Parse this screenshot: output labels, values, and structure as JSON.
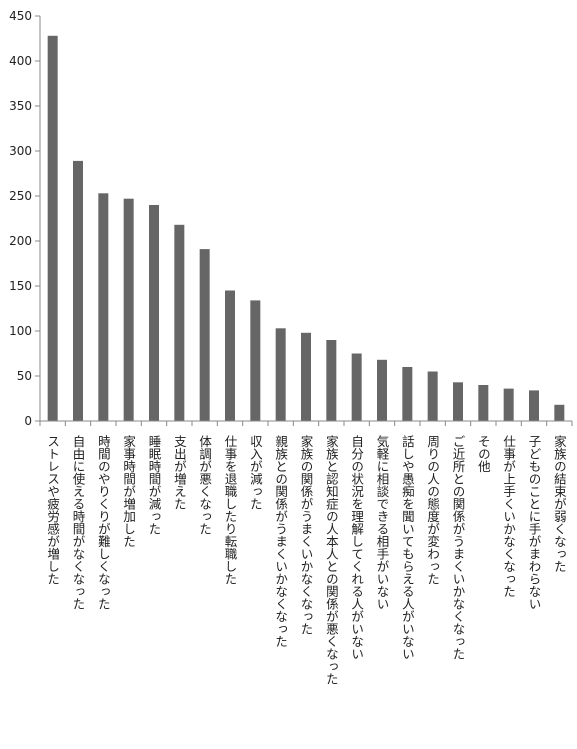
{
  "chart_data": {
    "type": "bar",
    "title": "",
    "xlabel": "",
    "ylabel": "",
    "ylim": [
      0,
      450
    ],
    "yticks": [
      0,
      50,
      100,
      150,
      200,
      250,
      300,
      350,
      400,
      450
    ],
    "grid": false,
    "legend": "none",
    "bar_color": "#666666",
    "axis_color": "#888888",
    "categories": [
      "ストレスや疲労感が増した",
      "自由に使える時間がなくなった",
      "時間のやりくりが難しくなった",
      "家事時間が増加した",
      "睡眠時間が減った",
      "支出が増えた",
      "体調が悪くなった",
      "仕事を退職したり転職した",
      "収入が減った",
      "親族との関係がうまくいかなくなった",
      "家族の関係がうまくいかなくなった",
      "家族と認知症の人本人との関係が悪くなった",
      "自分の状況を理解してくれる人がいない",
      "気軽に相談できる相手がいない",
      "話しや愚痴を聞いてもらえる人がいない",
      "周りの人の態度が変わった",
      "ご近所との関係がうまくいかなくなった",
      "その他",
      "仕事が上手くいかなくなった",
      "子どものことに手がまわらない",
      "家族の結束が弱くなった"
    ],
    "values": [
      428,
      289,
      253,
      247,
      240,
      218,
      191,
      145,
      134,
      103,
      98,
      90,
      75,
      68,
      60,
      55,
      43,
      40,
      36,
      34,
      18
    ]
  }
}
